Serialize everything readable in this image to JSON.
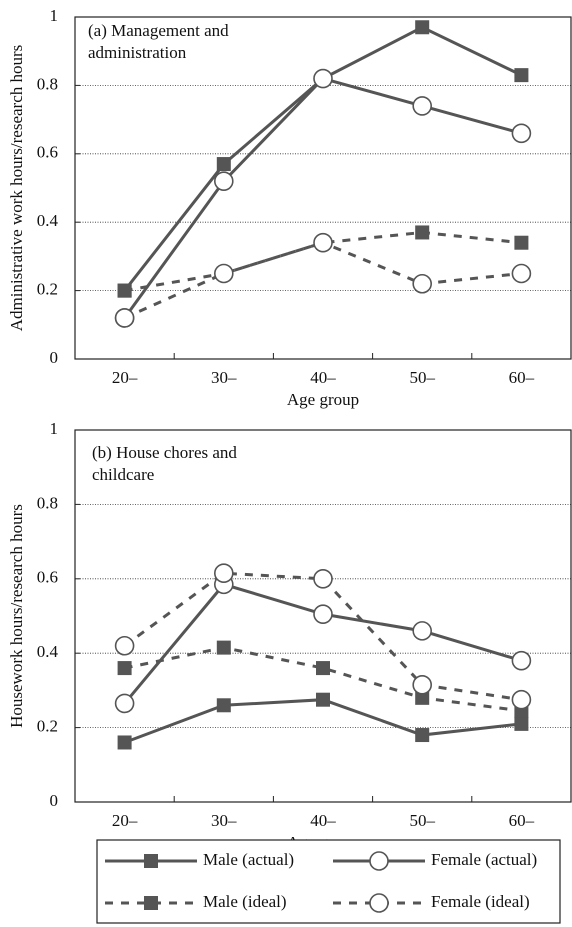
{
  "chart_data": [
    {
      "type": "line",
      "title": "(a) Management and administration",
      "x_label": "Age group",
      "y_label": "Administrative work hours/research hours",
      "categories": [
        "20–",
        "30–",
        "40–",
        "50–",
        "60–"
      ],
      "ylim": [
        0,
        1
      ],
      "yticks": [
        0,
        0.2,
        0.4,
        0.6,
        0.8,
        1
      ],
      "grid": true,
      "series": [
        {
          "color": "#555555",
          "marker": "square",
          "dash": false,
          "values": [
            0.2,
            0.57,
            0.82,
            0.97,
            0.83
          ]
        },
        {
          "color": "#555555",
          "marker": "circle",
          "dash": false,
          "values": [
            0.12,
            0.52,
            0.82,
            0.74,
            0.66
          ]
        },
        {
          "color": "#555555",
          "marker": "square",
          "dash": true,
          "values": [
            0.2,
            0.25,
            0.34,
            0.37,
            0.34
          ]
        },
        {
          "color": "#555555",
          "marker": "circle",
          "dash": true,
          "values": [
            0.12,
            0.25,
            0.34,
            0.22,
            0.25
          ]
        }
      ]
    },
    {
      "type": "line",
      "title": "(b) House chores and childcare",
      "x_label": "Age group",
      "y_label": "Housework hours/research hours",
      "categories": [
        "20–",
        "30–",
        "40–",
        "50–",
        "60–"
      ],
      "ylim": [
        0,
        1
      ],
      "yticks": [
        0,
        0.2,
        0.4,
        0.6,
        0.8,
        1
      ],
      "grid": true,
      "series": [
        {
          "name": "Male (actual)",
          "color": "#555555",
          "marker": "square",
          "dash": false,
          "values": [
            0.16,
            0.26,
            0.275,
            0.18,
            0.21
          ]
        },
        {
          "name": "Female (actual)",
          "color": "#555555",
          "marker": "circle",
          "dash": false,
          "values": [
            0.265,
            0.585,
            0.505,
            0.46,
            0.38
          ]
        },
        {
          "name": "Male (ideal)",
          "color": "#555555",
          "marker": "square",
          "dash": true,
          "values": [
            0.36,
            0.415,
            0.36,
            0.28,
            0.245
          ]
        },
        {
          "name": "Female (ideal)",
          "color": "#555555",
          "marker": "circle",
          "dash": true,
          "values": [
            0.42,
            0.615,
            0.6,
            0.315,
            0.275
          ]
        }
      ]
    }
  ]
}
